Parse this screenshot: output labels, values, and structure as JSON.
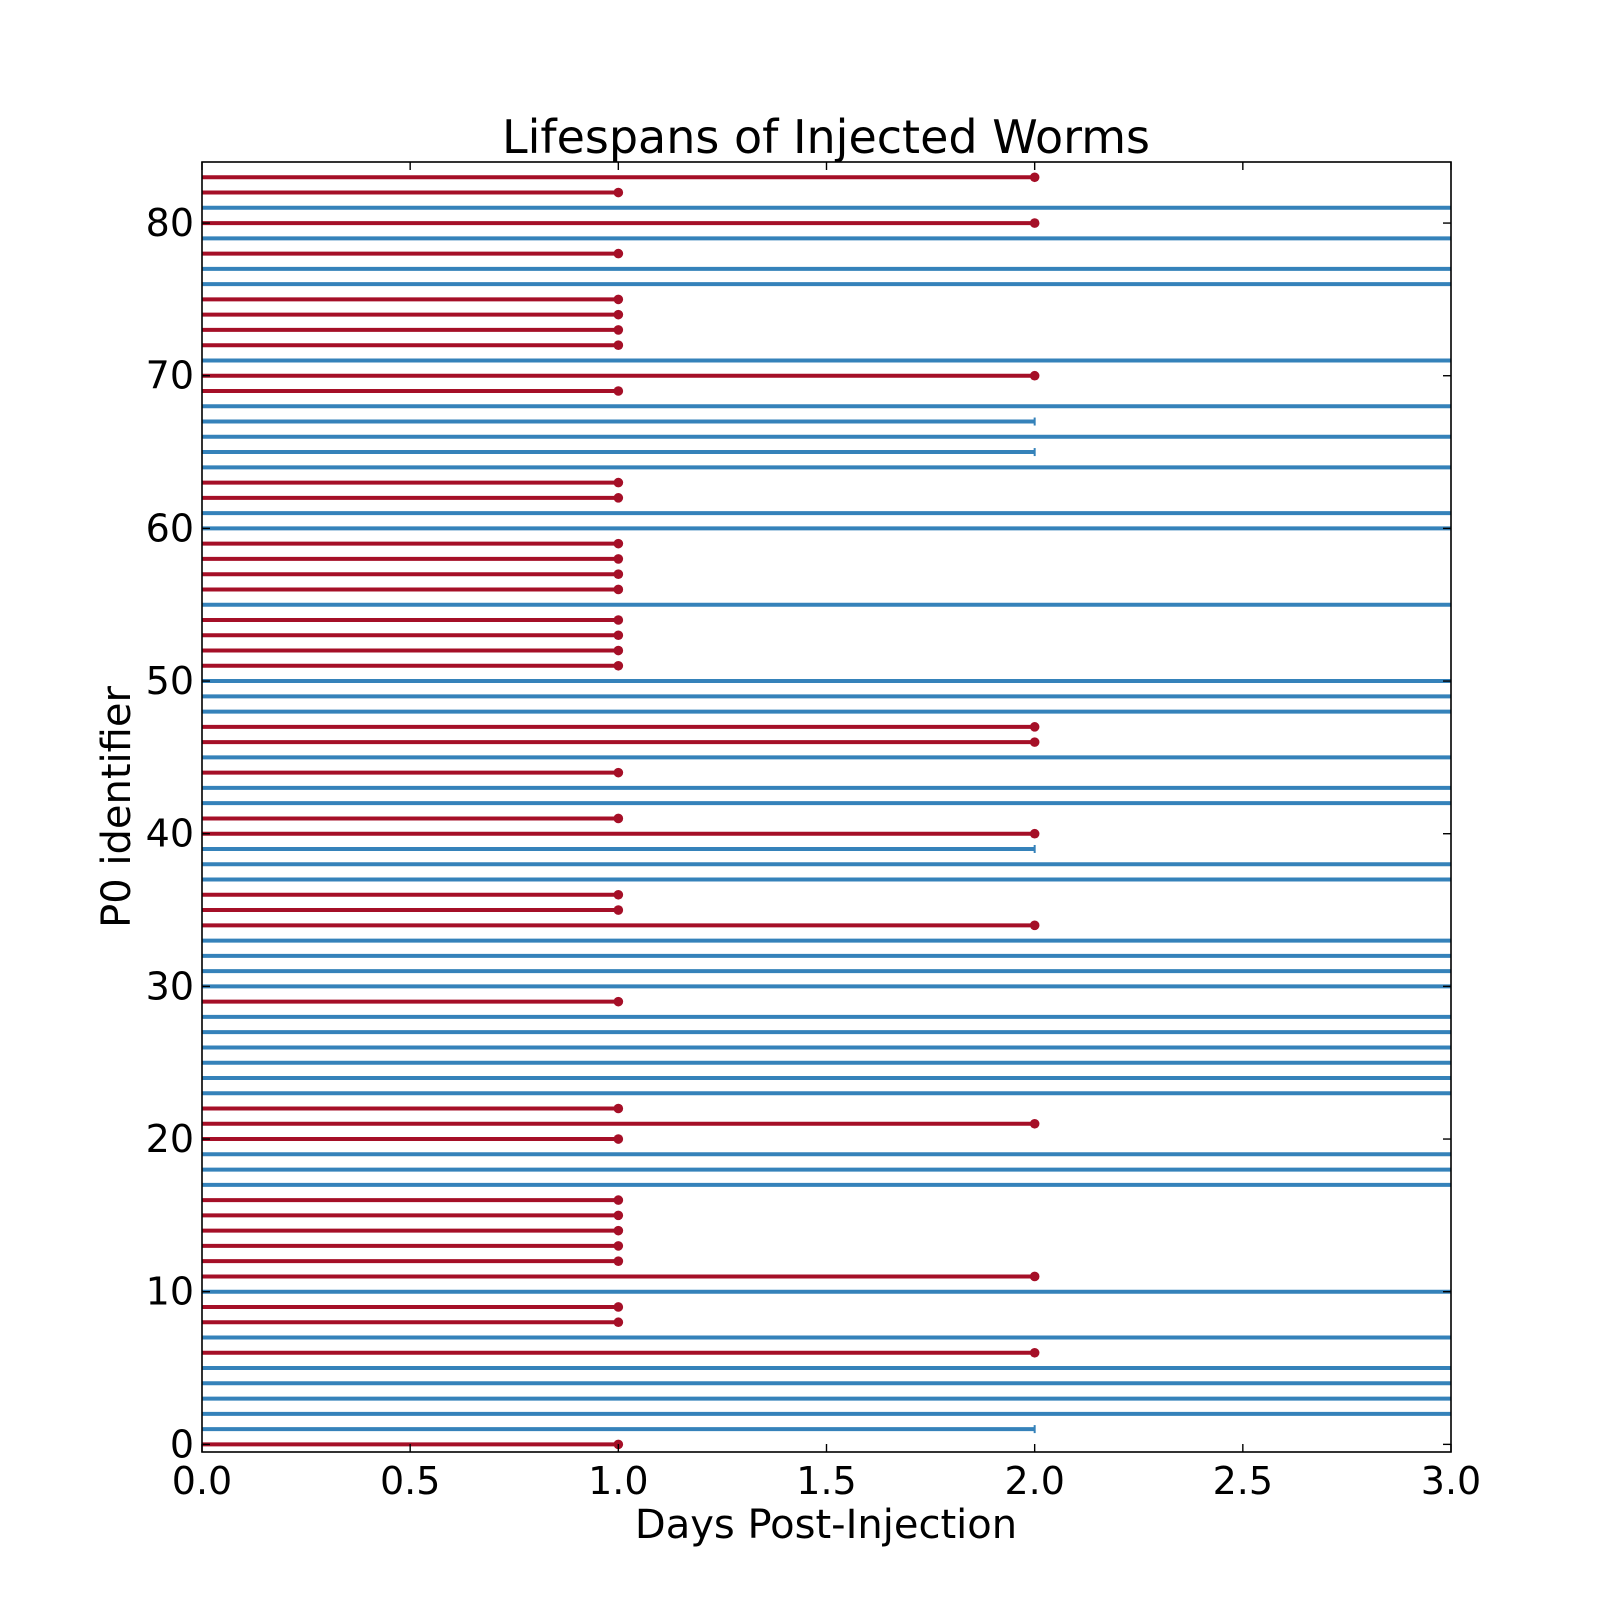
{
  "chart_data": {
    "type": "bar",
    "orientation": "horizontal",
    "title": "Lifespans of Injected Worms",
    "xlabel": "Days Post-Injection",
    "ylabel": "P0 identifier",
    "xlim": [
      0,
      3
    ],
    "ylim": [
      -0.5,
      84
    ],
    "xticks": [
      "0.0",
      "0.5",
      "1.0",
      "1.5",
      "2.0",
      "2.5",
      "3.0"
    ],
    "yticks": [
      "0",
      "10",
      "20",
      "30",
      "40",
      "50",
      "60",
      "70",
      "80"
    ],
    "grid": false,
    "colors": {
      "died": "#a50f27",
      "censored": "#3582ba"
    },
    "end_marker": {
      "died": "dot",
      "censored": "tick"
    },
    "series": [
      {
        "y": 0,
        "days": 1,
        "status": "died"
      },
      {
        "y": 1,
        "days": 2,
        "status": "censored"
      },
      {
        "y": 2,
        "days": 3,
        "status": "censored"
      },
      {
        "y": 3,
        "days": 3,
        "status": "censored"
      },
      {
        "y": 4,
        "days": 3,
        "status": "censored"
      },
      {
        "y": 5,
        "days": 3,
        "status": "censored"
      },
      {
        "y": 6,
        "days": 2,
        "status": "died"
      },
      {
        "y": 7,
        "days": 3,
        "status": "censored"
      },
      {
        "y": 8,
        "days": 1,
        "status": "died"
      },
      {
        "y": 9,
        "days": 1,
        "status": "died"
      },
      {
        "y": 10,
        "days": 3,
        "status": "censored"
      },
      {
        "y": 11,
        "days": 2,
        "status": "died"
      },
      {
        "y": 12,
        "days": 1,
        "status": "died"
      },
      {
        "y": 13,
        "days": 1,
        "status": "died"
      },
      {
        "y": 14,
        "days": 1,
        "status": "died"
      },
      {
        "y": 15,
        "days": 1,
        "status": "died"
      },
      {
        "y": 16,
        "days": 1,
        "status": "died"
      },
      {
        "y": 17,
        "days": 3,
        "status": "censored"
      },
      {
        "y": 18,
        "days": 3,
        "status": "censored"
      },
      {
        "y": 19,
        "days": 3,
        "status": "censored"
      },
      {
        "y": 20,
        "days": 1,
        "status": "died"
      },
      {
        "y": 21,
        "days": 2,
        "status": "died"
      },
      {
        "y": 22,
        "days": 1,
        "status": "died"
      },
      {
        "y": 23,
        "days": 3,
        "status": "censored"
      },
      {
        "y": 24,
        "days": 3,
        "status": "censored"
      },
      {
        "y": 25,
        "days": 3,
        "status": "censored"
      },
      {
        "y": 26,
        "days": 3,
        "status": "censored"
      },
      {
        "y": 27,
        "days": 3,
        "status": "censored"
      },
      {
        "y": 28,
        "days": 3,
        "status": "censored"
      },
      {
        "y": 29,
        "days": 1,
        "status": "died"
      },
      {
        "y": 30,
        "days": 3,
        "status": "censored"
      },
      {
        "y": 31,
        "days": 3,
        "status": "censored"
      },
      {
        "y": 32,
        "days": 3,
        "status": "censored"
      },
      {
        "y": 33,
        "days": 3,
        "status": "censored"
      },
      {
        "y": 34,
        "days": 2,
        "status": "died"
      },
      {
        "y": 35,
        "days": 1,
        "status": "died"
      },
      {
        "y": 36,
        "days": 1,
        "status": "died"
      },
      {
        "y": 37,
        "days": 3,
        "status": "censored"
      },
      {
        "y": 38,
        "days": 3,
        "status": "censored"
      },
      {
        "y": 39,
        "days": 2,
        "status": "censored"
      },
      {
        "y": 40,
        "days": 2,
        "status": "died"
      },
      {
        "y": 41,
        "days": 1,
        "status": "died"
      },
      {
        "y": 42,
        "days": 3,
        "status": "censored"
      },
      {
        "y": 43,
        "days": 3,
        "status": "censored"
      },
      {
        "y": 44,
        "days": 1,
        "status": "died"
      },
      {
        "y": 45,
        "days": 3,
        "status": "censored"
      },
      {
        "y": 46,
        "days": 2,
        "status": "died"
      },
      {
        "y": 47,
        "days": 2,
        "status": "died"
      },
      {
        "y": 48,
        "days": 3,
        "status": "censored"
      },
      {
        "y": 49,
        "days": 3,
        "status": "censored"
      },
      {
        "y": 50,
        "days": 3,
        "status": "censored"
      },
      {
        "y": 51,
        "days": 1,
        "status": "died"
      },
      {
        "y": 52,
        "days": 1,
        "status": "died"
      },
      {
        "y": 53,
        "days": 1,
        "status": "died"
      },
      {
        "y": 54,
        "days": 1,
        "status": "died"
      },
      {
        "y": 55,
        "days": 3,
        "status": "censored"
      },
      {
        "y": 56,
        "days": 1,
        "status": "died"
      },
      {
        "y": 57,
        "days": 1,
        "status": "died"
      },
      {
        "y": 58,
        "days": 1,
        "status": "died"
      },
      {
        "y": 59,
        "days": 1,
        "status": "died"
      },
      {
        "y": 60,
        "days": 3,
        "status": "censored"
      },
      {
        "y": 61,
        "days": 3,
        "status": "censored"
      },
      {
        "y": 62,
        "days": 1,
        "status": "died"
      },
      {
        "y": 63,
        "days": 1,
        "status": "died"
      },
      {
        "y": 64,
        "days": 3,
        "status": "censored"
      },
      {
        "y": 65,
        "days": 2,
        "status": "censored"
      },
      {
        "y": 66,
        "days": 3,
        "status": "censored"
      },
      {
        "y": 67,
        "days": 2,
        "status": "censored"
      },
      {
        "y": 68,
        "days": 3,
        "status": "censored"
      },
      {
        "y": 69,
        "days": 1,
        "status": "died"
      },
      {
        "y": 70,
        "days": 2,
        "status": "died"
      },
      {
        "y": 71,
        "days": 3,
        "status": "censored"
      },
      {
        "y": 72,
        "days": 1,
        "status": "died"
      },
      {
        "y": 73,
        "days": 1,
        "status": "died"
      },
      {
        "y": 74,
        "days": 1,
        "status": "died"
      },
      {
        "y": 75,
        "days": 1,
        "status": "died"
      },
      {
        "y": 76,
        "days": 3,
        "status": "censored"
      },
      {
        "y": 77,
        "days": 3,
        "status": "censored"
      },
      {
        "y": 78,
        "days": 1,
        "status": "died"
      },
      {
        "y": 79,
        "days": 3,
        "status": "censored"
      },
      {
        "y": 80,
        "days": 2,
        "status": "died"
      },
      {
        "y": 81,
        "days": 3,
        "status": "censored"
      },
      {
        "y": 82,
        "days": 1,
        "status": "died"
      },
      {
        "y": 83,
        "days": 2,
        "status": "died"
      }
    ]
  }
}
